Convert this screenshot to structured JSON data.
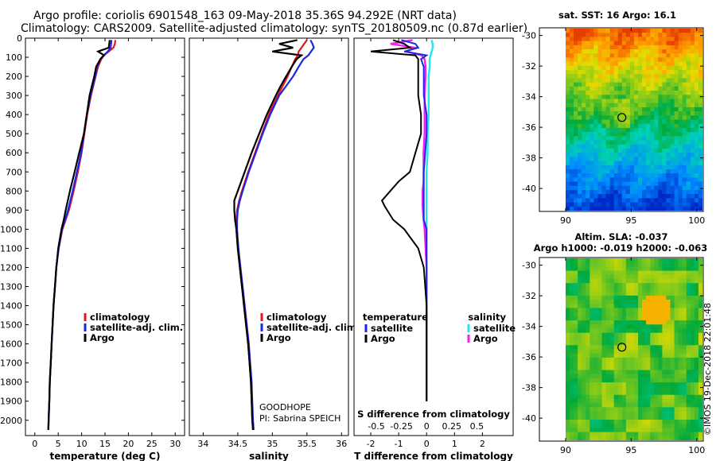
{
  "header": {
    "line1": "Argo profile: coriolis 6901548_163 09-May-2018 35.36S 94.292E (NRT data)",
    "line2": "Climatology: CARS2009. Satellite-adjusted climatology: synTS_20180509.nc (0.87d earlier)"
  },
  "colors": {
    "climatology": "#e8141c",
    "satellite_adj": "#1c26e6",
    "argo": "#000000",
    "satellite_sal": "#22e6ee",
    "argo_sal": "#ee22ee"
  },
  "chart_data": [
    {
      "type": "line",
      "name": "temperature-panel",
      "xlabel": "temperature (deg C)",
      "ylabel": "",
      "xlim": [
        -2,
        32
      ],
      "ylim": [
        2080,
        0
      ],
      "xticks": [
        "0",
        "5",
        "10",
        "15",
        "20",
        "25",
        "30"
      ],
      "yticks": [
        "0",
        "100",
        "200",
        "300",
        "400",
        "500",
        "600",
        "700",
        "800",
        "900",
        "1000",
        "1100",
        "1200",
        "1300",
        "1400",
        "1500",
        "1600",
        "1700",
        "1800",
        "1900",
        "2000"
      ],
      "depth": [
        10,
        30,
        50,
        70,
        90,
        110,
        150,
        200,
        250,
        300,
        400,
        500,
        600,
        700,
        800,
        900,
        950,
        1000,
        1100,
        1200,
        1300,
        1400,
        1500,
        1600,
        1700,
        1800,
        1900,
        2000,
        2050
      ],
      "series": [
        {
          "name": "climatology",
          "values": [
            17.2,
            17.1,
            16.8,
            15.8,
            14.8,
            14.2,
            13.5,
            13.0,
            12.5,
            12.0,
            11.2,
            10.6,
            10.0,
            9.2,
            8.3,
            7.3,
            6.6,
            5.9,
            5.1,
            4.6,
            4.3,
            4.0,
            3.8,
            3.6,
            3.4,
            3.2,
            3.1,
            2.95,
            2.9
          ]
        },
        {
          "name": "satellite-adj. clim.",
          "values": [
            16.4,
            16.3,
            16.2,
            15.6,
            14.7,
            14.0,
            13.3,
            12.9,
            12.4,
            11.9,
            11.1,
            10.5,
            9.9,
            9.0,
            8.1,
            7.1,
            6.5,
            5.8,
            5.1,
            4.6,
            4.3,
            4.0,
            3.8,
            3.6,
            3.4,
            3.2,
            3.1,
            2.95,
            2.9
          ]
        },
        {
          "name": "Argo",
          "values": [
            16.0,
            15.9,
            15.8,
            13.5,
            14.8,
            14.0,
            13.1,
            12.7,
            12.2,
            11.7,
            11.1,
            10.5,
            9.5,
            8.5,
            7.5,
            6.6,
            6.2,
            5.7,
            5.0,
            4.6,
            4.3,
            4.0,
            3.8,
            3.6,
            3.4,
            3.2,
            3.1,
            2.95,
            2.9
          ]
        }
      ],
      "legend": [
        "climatology",
        "satellite-adj. clim.",
        "Argo"
      ]
    },
    {
      "type": "line",
      "name": "salinity-panel",
      "xlabel": "salinity",
      "xlim": [
        33.8,
        36.1
      ],
      "ylim": [
        2080,
        0
      ],
      "xticks": [
        "34",
        "34.5",
        "35",
        "35.5",
        "36"
      ],
      "depth": [
        10,
        30,
        50,
        70,
        90,
        110,
        150,
        200,
        250,
        300,
        400,
        500,
        600,
        700,
        800,
        850,
        900,
        950,
        1000,
        1100,
        1200,
        1300,
        1400,
        1500,
        1600,
        1700,
        1800,
        1900,
        2000,
        2050
      ],
      "series": [
        {
          "name": "climatology",
          "values": [
            35.5,
            35.46,
            35.42,
            35.38,
            35.37,
            35.33,
            35.28,
            35.22,
            35.15,
            35.08,
            34.95,
            34.85,
            34.75,
            34.65,
            34.56,
            34.52,
            34.49,
            34.48,
            34.48,
            34.5,
            34.53,
            34.56,
            34.59,
            34.62,
            34.65,
            34.67,
            34.69,
            34.7,
            34.71,
            34.72
          ]
        },
        {
          "name": "satellite-adj. clim.",
          "values": [
            35.55,
            35.58,
            35.6,
            35.56,
            35.52,
            35.45,
            35.38,
            35.3,
            35.2,
            35.1,
            34.97,
            34.86,
            34.76,
            34.66,
            34.57,
            34.53,
            34.5,
            34.49,
            34.49,
            34.51,
            34.54,
            34.57,
            34.6,
            34.63,
            34.66,
            34.68,
            34.7,
            34.71,
            34.72,
            34.73
          ]
        },
        {
          "name": "Argo",
          "values": [
            35.36,
            35.1,
            35.3,
            35.0,
            35.42,
            35.35,
            35.28,
            35.2,
            35.12,
            35.05,
            34.92,
            34.81,
            34.7,
            34.6,
            34.5,
            34.45,
            34.45,
            34.46,
            34.48,
            34.5,
            34.53,
            34.56,
            34.59,
            34.62,
            34.65,
            34.67,
            34.69,
            34.7,
            34.71,
            34.72
          ]
        }
      ],
      "legend": [
        "climatology",
        "satellite-adj. clim.",
        "Argo"
      ],
      "annotation": [
        "GOODHOPE",
        "PI: Sabrina SPEICH"
      ]
    },
    {
      "type": "line",
      "name": "difference-panel",
      "xlabel": "T difference from climatology",
      "xlabel_top": "S difference from climatology",
      "xlim": [
        -2.6,
        3.1
      ],
      "ylim": [
        2080,
        0
      ],
      "xticks": [
        "-2",
        "-1",
        "0",
        "1",
        "2"
      ],
      "xticks_top": [
        "-0.5",
        "-0.25",
        "0",
        "0.25",
        "0.5"
      ],
      "depth": [
        10,
        30,
        50,
        70,
        90,
        110,
        150,
        200,
        300,
        400,
        500,
        600,
        700,
        750,
        800,
        850,
        880,
        950,
        1000,
        1100,
        1200,
        1300,
        1400,
        1500,
        1600,
        1700,
        1800,
        1900
      ],
      "series": [
        {
          "name": "temperature satellite",
          "values": [
            -0.9,
            -0.4,
            -0.3,
            -0.8,
            0.0,
            -0.2,
            -0.1,
            -0.1,
            -0.1,
            0.0,
            0.0,
            -0.05,
            -0.1,
            -0.1,
            -0.1,
            -0.1,
            -0.1,
            -0.1,
            0.0,
            0.0,
            0.0,
            0.0,
            0.0,
            0.0,
            0.0,
            0.0,
            0.0,
            0.0
          ]
        },
        {
          "name": "temperature Argo",
          "values": [
            -1.2,
            -0.8,
            -0.6,
            -2.0,
            -0.4,
            -0.3,
            -0.3,
            -0.3,
            -0.3,
            -0.2,
            -0.2,
            -0.4,
            -0.6,
            -1.0,
            -1.3,
            -1.6,
            -1.5,
            -1.2,
            -0.8,
            -0.3,
            -0.1,
            -0.05,
            0.0,
            0.0,
            0.0,
            0.0,
            0.0,
            0.0
          ]
        },
        {
          "name": "salinity satellite",
          "values": [
            0.05,
            0.06,
            0.06,
            0.05,
            0.04,
            0.03,
            0.03,
            0.02,
            0.02,
            0.02,
            0.01,
            0.01,
            0.0,
            0.0,
            0.0,
            0.0,
            0.0,
            0.0,
            0.0,
            0.0,
            0.0,
            0.0,
            0.0,
            0.0,
            0.0,
            0.0,
            0.0,
            0.0
          ]
        },
        {
          "name": "salinity Argo",
          "values": [
            -0.14,
            -0.36,
            -0.12,
            -0.2,
            -0.05,
            -0.02,
            -0.01,
            -0.01,
            -0.02,
            -0.02,
            -0.02,
            -0.03,
            -0.03,
            -0.03,
            -0.04,
            -0.04,
            -0.04,
            -0.03,
            -0.02,
            -0.01,
            0.0,
            0.0,
            0.0,
            0.0,
            0.0,
            0.0,
            0.0,
            0.0
          ]
        }
      ],
      "legend_temperature": {
        "title": "temperature",
        "items": [
          "satellite",
          "Argo"
        ]
      },
      "legend_salinity": {
        "title": "salinity",
        "items": [
          "satellite",
          "Argo"
        ]
      }
    },
    {
      "type": "heatmap",
      "name": "sst-map",
      "title": "sat. SST: 16 Argo: 16.1",
      "xlim": [
        88,
        100.5
      ],
      "ylim": [
        -41.5,
        -29.5
      ],
      "xticks": [
        "90",
        "95",
        "100"
      ],
      "yticks": [
        "-30",
        "-32",
        "-34",
        "-36",
        "-38",
        "-40"
      ],
      "argo_position": {
        "lon": 94.292,
        "lat": -35.36
      }
    },
    {
      "type": "heatmap",
      "name": "sla-map",
      "title_line1": "Altim. SLA: -0.037",
      "title_line2": "Argo h1000: -0.019 h2000: -0.063",
      "xlim": [
        88,
        100.5
      ],
      "ylim": [
        -41.5,
        -29.5
      ],
      "xticks": [
        "90",
        "95",
        "100"
      ],
      "yticks": [
        "-30",
        "-32",
        "-34",
        "-36",
        "-38",
        "-40"
      ],
      "argo_position": {
        "lon": 94.292,
        "lat": -35.36
      }
    }
  ],
  "footer": {
    "stamp": "©IMOS 19-Dec-2018 22:01:48"
  }
}
